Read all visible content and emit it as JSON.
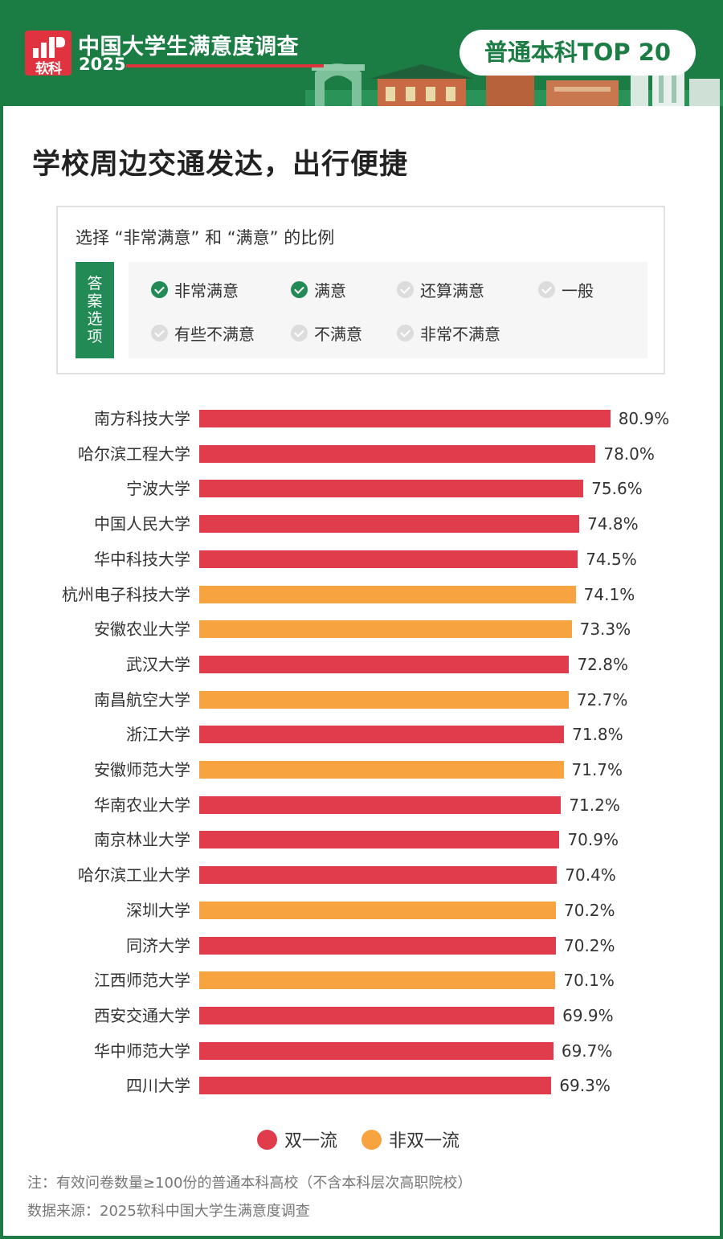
{
  "header": {
    "logo_text": "软科",
    "survey_title": "中国大学生满意度调查",
    "survey_year": "2025",
    "badge": "普通本科TOP 20"
  },
  "title": "学校周边交通发达，出行便捷",
  "question": {
    "prompt": "选择 “非常满意” 和 “满意” 的比例",
    "answer_tag": [
      "答",
      "案",
      "选",
      "项"
    ],
    "options": [
      {
        "label": "非常满意",
        "selected": true
      },
      {
        "label": "满意",
        "selected": true
      },
      {
        "label": "还算满意",
        "selected": false
      },
      {
        "label": "一般",
        "selected": false
      },
      {
        "label": "有些不满意",
        "selected": false
      },
      {
        "label": "不满意",
        "selected": false
      },
      {
        "label": "非常不满意",
        "selected": false
      }
    ]
  },
  "chart_data": {
    "type": "bar",
    "orientation": "horizontal",
    "title": "学校周边交通发达，出行便捷",
    "unit": "%",
    "categories": [
      "南方科技大学",
      "哈尔滨工程大学",
      "宁波大学",
      "中国人民大学",
      "华中科技大学",
      "杭州电子科技大学",
      "安徽农业大学",
      "武汉大学",
      "南昌航空大学",
      "浙江大学",
      "安徽师范大学",
      "华南农业大学",
      "南京林业大学",
      "哈尔滨工业大学",
      "深圳大学",
      "同济大学",
      "江西师范大学",
      "西安交通大学",
      "华中师范大学",
      "四川大学"
    ],
    "values": [
      80.9,
      78.0,
      75.6,
      74.8,
      74.5,
      74.1,
      73.3,
      72.8,
      72.7,
      71.8,
      71.7,
      71.2,
      70.9,
      70.4,
      70.2,
      70.2,
      70.1,
      69.9,
      69.7,
      69.3
    ],
    "value_labels": [
      "80.9%",
      "78.0%",
      "75.6%",
      "74.8%",
      "74.5%",
      "74.1%",
      "73.3%",
      "72.8%",
      "72.7%",
      "71.8%",
      "71.7%",
      "71.2%",
      "70.9%",
      "70.4%",
      "70.2%",
      "70.2%",
      "70.1%",
      "69.9%",
      "69.7%",
      "69.3%"
    ],
    "groups": [
      "双一流",
      "双一流",
      "双一流",
      "双一流",
      "双一流",
      "非双一流",
      "非双一流",
      "双一流",
      "非双一流",
      "双一流",
      "非双一流",
      "双一流",
      "双一流",
      "双一流",
      "非双一流",
      "双一流",
      "非双一流",
      "双一流",
      "双一流",
      "双一流"
    ],
    "legend": [
      {
        "name": "双一流",
        "color": "#e03c4c"
      },
      {
        "name": "非双一流",
        "color": "#f7a440"
      }
    ],
    "legend_position": "bottom",
    "grid": false,
    "xlim": [
      0,
      100
    ]
  },
  "notes": {
    "note": "注：有效问卷数量≥100份的普通本科高校（不含本科层次高职院校）",
    "source": "数据来源：2025软科中国大学生满意度调查"
  }
}
